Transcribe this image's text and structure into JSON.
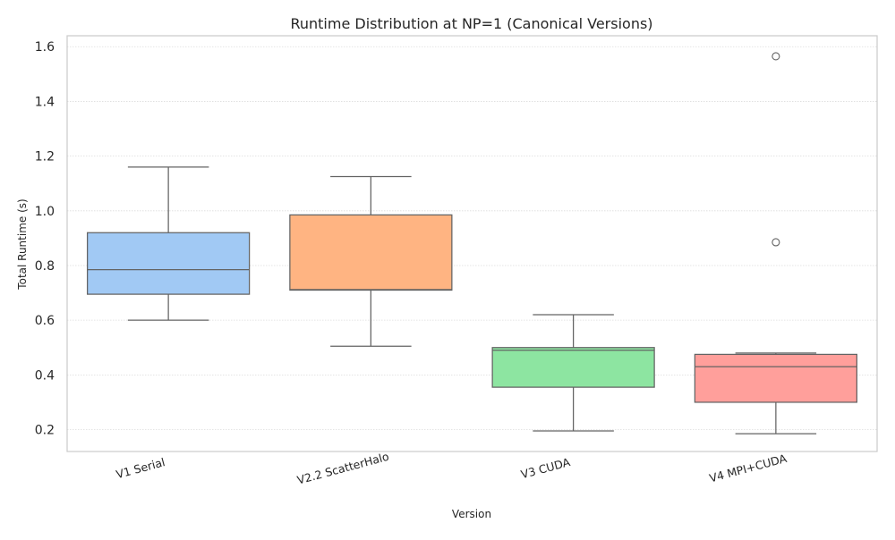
{
  "chart_data": {
    "type": "box",
    "title": "Runtime Distribution at NP=1 (Canonical Versions)",
    "xlabel": "Version",
    "ylabel": "Total Runtime (s)",
    "ylim": [
      0.12,
      1.64
    ],
    "yticks": [
      0.2,
      0.4,
      0.6,
      0.8,
      1.0,
      1.2,
      1.4,
      1.6
    ],
    "ytick_labels": [
      "0.2",
      "0.4",
      "0.6",
      "0.8",
      "1.0",
      "1.2",
      "1.4",
      "1.6"
    ],
    "grid": "horizontal dotted",
    "categories": [
      "V1 Serial",
      "V2.2 ScatterHalo",
      "V3 CUDA",
      "V4 MPI+CUDA"
    ],
    "boxes": [
      {
        "category": "V1 Serial",
        "whisker_low": 0.6,
        "q1": 0.695,
        "median": 0.785,
        "q3": 0.92,
        "whisker_high": 1.16,
        "outliers": [],
        "color": "#a1c9f4"
      },
      {
        "category": "V2.2 ScatterHalo",
        "whisker_low": 0.505,
        "q1": 0.71,
        "median": 0.712,
        "q3": 0.985,
        "whisker_high": 1.125,
        "outliers": [],
        "color": "#ffb482"
      },
      {
        "category": "V3 CUDA",
        "whisker_low": 0.195,
        "q1": 0.355,
        "median": 0.49,
        "q3": 0.5,
        "whisker_high": 0.62,
        "outliers": [],
        "color": "#8de5a1"
      },
      {
        "category": "V4 MPI+CUDA",
        "whisker_low": 0.185,
        "q1": 0.3,
        "median": 0.43,
        "q3": 0.475,
        "whisker_high": 0.48,
        "outliers": [
          0.885,
          1.565
        ],
        "color": "#ff9f9b"
      }
    ]
  }
}
